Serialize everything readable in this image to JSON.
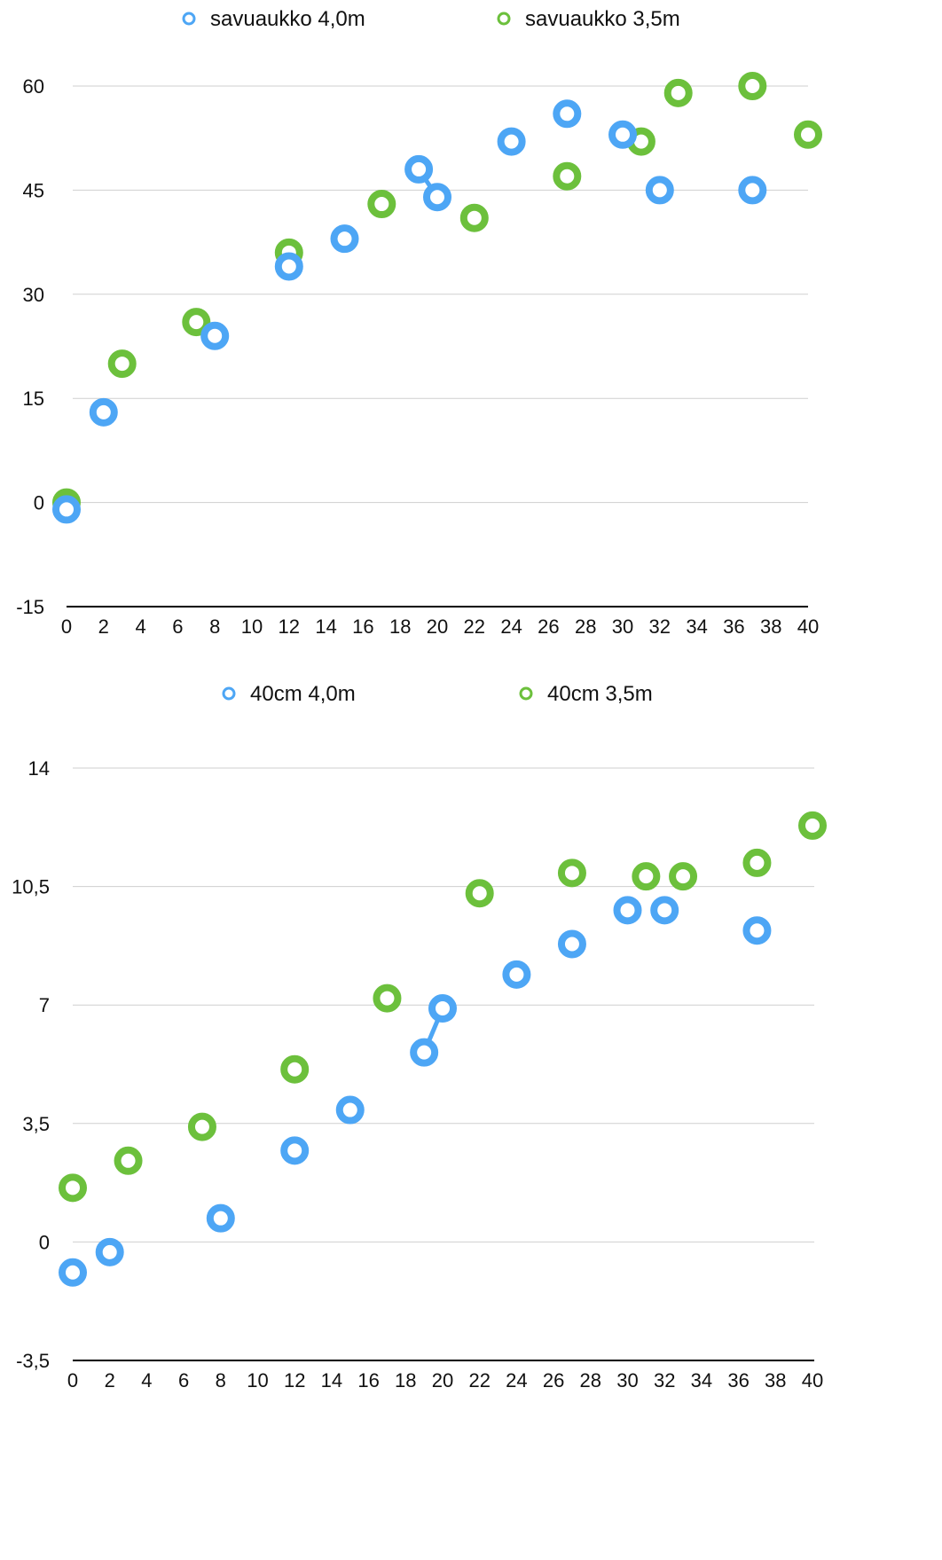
{
  "chart_data": [
    {
      "type": "scatter",
      "title": "",
      "xlabel": "",
      "ylabel": "",
      "xlim": [
        0,
        40
      ],
      "ylim": [
        -15,
        60
      ],
      "x_ticks": [
        "0",
        "2",
        "4",
        "6",
        "8",
        "10",
        "12",
        "14",
        "16",
        "18",
        "20",
        "22",
        "24",
        "26",
        "28",
        "30",
        "32",
        "34",
        "36",
        "38",
        "40"
      ],
      "y_ticks": [
        "-15",
        "0",
        "15",
        "30",
        "45",
        "60"
      ],
      "grid": true,
      "legend_position": "top",
      "series": [
        {
          "name": "savuaukko 4,0m",
          "color": "#4da6f5",
          "points": [
            [
              0,
              -1
            ],
            [
              2,
              13
            ],
            [
              8,
              24
            ],
            [
              12,
              34
            ],
            [
              15,
              38
            ],
            [
              19,
              48
            ],
            [
              20,
              44
            ],
            [
              24,
              52
            ],
            [
              27,
              56
            ],
            [
              30,
              53
            ],
            [
              32,
              45
            ],
            [
              37,
              45
            ]
          ],
          "connected_segments": [
            [
              5,
              6
            ]
          ]
        },
        {
          "name": "savuaukko 3,5m",
          "color": "#6cc03c",
          "points": [
            [
              0,
              0
            ],
            [
              3,
              20
            ],
            [
              7,
              26
            ],
            [
              12,
              36
            ],
            [
              17,
              43
            ],
            [
              22,
              41
            ],
            [
              27,
              47
            ],
            [
              31,
              52
            ],
            [
              33,
              59
            ],
            [
              37,
              60
            ],
            [
              40,
              53
            ]
          ],
          "connected_segments": []
        }
      ]
    },
    {
      "type": "scatter",
      "title": "",
      "xlabel": "",
      "ylabel": "",
      "xlim": [
        0,
        40
      ],
      "ylim": [
        -3.5,
        14
      ],
      "x_ticks": [
        "0",
        "2",
        "4",
        "6",
        "8",
        "10",
        "12",
        "14",
        "16",
        "18",
        "20",
        "22",
        "24",
        "26",
        "28",
        "30",
        "32",
        "34",
        "36",
        "38",
        "40"
      ],
      "y_ticks": [
        "-3,5",
        "0",
        "3,5",
        "7",
        "10,5",
        "14"
      ],
      "grid": true,
      "legend_position": "top",
      "series": [
        {
          "name": "40cm 4,0m",
          "color": "#4da6f5",
          "points": [
            [
              0,
              -0.9
            ],
            [
              2,
              -0.3
            ],
            [
              8,
              0.7
            ],
            [
              12,
              2.7
            ],
            [
              15,
              3.9
            ],
            [
              19,
              5.6
            ],
            [
              20,
              6.9
            ],
            [
              24,
              7.9
            ],
            [
              27,
              8.8
            ],
            [
              30,
              9.8
            ],
            [
              32,
              9.8
            ],
            [
              37,
              9.2
            ]
          ],
          "connected_segments": [
            [
              5,
              6
            ]
          ]
        },
        {
          "name": "40cm 3,5m",
          "color": "#6cc03c",
          "points": [
            [
              0,
              1.6
            ],
            [
              3,
              2.4
            ],
            [
              7,
              3.4
            ],
            [
              12,
              5.1
            ],
            [
              17,
              7.2
            ],
            [
              22,
              10.3
            ],
            [
              27,
              10.9
            ],
            [
              31,
              10.8
            ],
            [
              33,
              10.8
            ],
            [
              37,
              11.2
            ],
            [
              40,
              12.3
            ]
          ],
          "connected_segments": []
        }
      ]
    }
  ]
}
